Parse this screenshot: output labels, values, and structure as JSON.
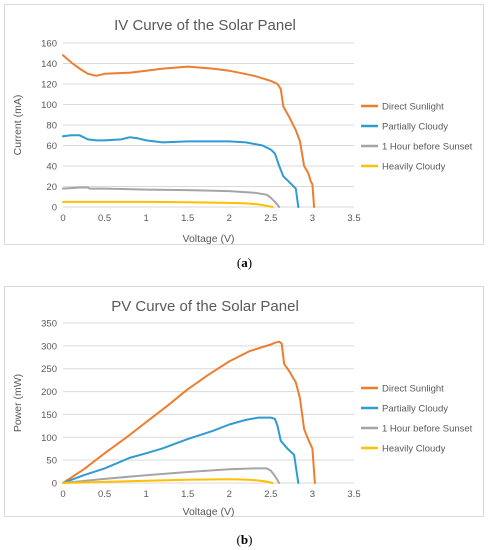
{
  "captions": {
    "a_open": "(",
    "a_letter": "a",
    "a_close": ")",
    "b_open": "(",
    "b_letter": "b",
    "b_close": ")"
  },
  "chart_data": [
    {
      "type": "line",
      "title": "IV Curve of the Solar Panel",
      "xlabel": "Voltage (V)",
      "ylabel": "Current (mA)",
      "xlim": [
        0,
        3.5
      ],
      "ylim": [
        0,
        160
      ],
      "xticks": [
        0,
        0.5,
        1,
        1.5,
        2,
        2.5,
        3,
        3.5
      ],
      "xtick_labels": [
        "0",
        "0.5",
        "1",
        "1.5",
        "2",
        "2.5",
        "3",
        "3.5"
      ],
      "yticks": [
        0,
        20,
        40,
        60,
        80,
        100,
        120,
        140,
        160
      ],
      "ytick_labels": [
        "0",
        "20",
        "40",
        "60",
        "80",
        "100",
        "120",
        "140",
        "160"
      ],
      "grid": "horizontal",
      "legend": "right",
      "series": [
        {
          "name": "Direct Sunlight",
          "color": "#ED7D31",
          "points": [
            [
              0,
              148
            ],
            [
              0.1,
              141
            ],
            [
              0.2,
              135
            ],
            [
              0.3,
              130
            ],
            [
              0.4,
              128
            ],
            [
              0.5,
              130
            ],
            [
              0.8,
              131
            ],
            [
              1.0,
              133
            ],
            [
              1.2,
              135
            ],
            [
              1.5,
              137
            ],
            [
              1.8,
              135
            ],
            [
              2.0,
              133
            ],
            [
              2.3,
              128
            ],
            [
              2.5,
              123
            ],
            [
              2.58,
              120
            ],
            [
              2.62,
              115
            ],
            [
              2.65,
              98
            ],
            [
              2.72,
              88
            ],
            [
              2.8,
              75
            ],
            [
              2.85,
              64
            ],
            [
              2.9,
              40
            ],
            [
              2.95,
              33
            ],
            [
              2.98,
              25
            ],
            [
              3.0,
              22
            ],
            [
              3.02,
              0
            ]
          ]
        },
        {
          "name": "Partially Cloudy",
          "color": "#2E9BD1",
          "points": [
            [
              0,
              69
            ],
            [
              0.1,
              70
            ],
            [
              0.2,
              70
            ],
            [
              0.3,
              66
            ],
            [
              0.4,
              65
            ],
            [
              0.5,
              65
            ],
            [
              0.7,
              66
            ],
            [
              0.8,
              68
            ],
            [
              0.9,
              67
            ],
            [
              1.0,
              65
            ],
            [
              1.2,
              63
            ],
            [
              1.5,
              64
            ],
            [
              2.0,
              64
            ],
            [
              2.2,
              63
            ],
            [
              2.4,
              60
            ],
            [
              2.5,
              56
            ],
            [
              2.55,
              52
            ],
            [
              2.6,
              40
            ],
            [
              2.65,
              30
            ],
            [
              2.7,
              26
            ],
            [
              2.75,
              22
            ],
            [
              2.8,
              18
            ],
            [
              2.83,
              0
            ]
          ]
        },
        {
          "name": "1 Hour before Sunset",
          "color": "#A5A5A5",
          "points": [
            [
              0,
              18
            ],
            [
              0.2,
              19
            ],
            [
              0.3,
              19
            ],
            [
              0.32,
              18
            ],
            [
              0.5,
              18
            ],
            [
              1.0,
              17
            ],
            [
              1.5,
              16.5
            ],
            [
              2.0,
              15.5
            ],
            [
              2.3,
              14
            ],
            [
              2.45,
              12
            ],
            [
              2.5,
              9
            ],
            [
              2.55,
              5
            ],
            [
              2.6,
              0
            ]
          ]
        },
        {
          "name": "Heavily Cloudy",
          "color": "#FFC000",
          "points": [
            [
              0,
              5
            ],
            [
              0.5,
              5
            ],
            [
              1.0,
              5
            ],
            [
              1.5,
              4.7
            ],
            [
              2.0,
              4
            ],
            [
              2.2,
              3.5
            ],
            [
              2.35,
              2.5
            ],
            [
              2.45,
              1.2
            ],
            [
              2.52,
              0
            ]
          ]
        }
      ]
    },
    {
      "type": "line",
      "title": "PV Curve of the Solar Panel",
      "xlabel": "Voltage (V)",
      "ylabel": "Power (mW)",
      "xlim": [
        0,
        3.5
      ],
      "ylim": [
        0,
        350
      ],
      "xticks": [
        0,
        0.5,
        1,
        1.5,
        2,
        2.5,
        3,
        3.5
      ],
      "xtick_labels": [
        "0",
        "0.5",
        "1",
        "1.5",
        "2",
        "2.5",
        "3",
        "3.5"
      ],
      "yticks": [
        0,
        50,
        100,
        150,
        200,
        250,
        300,
        350
      ],
      "ytick_labels": [
        "0",
        "50",
        "100",
        "150",
        "200",
        "250",
        "300",
        "350"
      ],
      "grid": "horizontal",
      "legend": "right",
      "series": [
        {
          "name": "Direct Sunlight",
          "color": "#ED7D31",
          "points": [
            [
              0,
              0
            ],
            [
              0.25,
              30
            ],
            [
              0.5,
              65
            ],
            [
              0.75,
              98
            ],
            [
              1.0,
              133
            ],
            [
              1.25,
              168
            ],
            [
              1.5,
              205
            ],
            [
              1.75,
              237
            ],
            [
              2.0,
              266
            ],
            [
              2.25,
              289
            ],
            [
              2.5,
              303
            ],
            [
              2.55,
              307
            ],
            [
              2.6,
              309
            ],
            [
              2.63,
              305
            ],
            [
              2.66,
              260
            ],
            [
              2.72,
              245
            ],
            [
              2.8,
              220
            ],
            [
              2.85,
              185
            ],
            [
              2.9,
              118
            ],
            [
              2.95,
              95
            ],
            [
              3.0,
              75
            ],
            [
              3.03,
              0
            ]
          ]
        },
        {
          "name": "Partially Cloudy",
          "color": "#2E9BD1",
          "points": [
            [
              0,
              0
            ],
            [
              0.25,
              17
            ],
            [
              0.5,
              32
            ],
            [
              0.8,
              55
            ],
            [
              1.0,
              65
            ],
            [
              1.2,
              76
            ],
            [
              1.5,
              96
            ],
            [
              1.8,
              114
            ],
            [
              2.0,
              128
            ],
            [
              2.2,
              138
            ],
            [
              2.35,
              143
            ],
            [
              2.5,
              143
            ],
            [
              2.55,
              140
            ],
            [
              2.58,
              125
            ],
            [
              2.62,
              92
            ],
            [
              2.7,
              75
            ],
            [
              2.78,
              62
            ],
            [
              2.83,
              0
            ]
          ]
        },
        {
          "name": "1 Hour before Sunset",
          "color": "#A5A5A5",
          "points": [
            [
              0,
              0
            ],
            [
              0.5,
              9
            ],
            [
              1.0,
              17
            ],
            [
              1.5,
              24
            ],
            [
              2.0,
              30
            ],
            [
              2.3,
              32
            ],
            [
              2.45,
              32
            ],
            [
              2.5,
              27
            ],
            [
              2.55,
              15
            ],
            [
              2.6,
              0
            ]
          ]
        },
        {
          "name": "Heavily Cloudy",
          "color": "#FFC000",
          "points": [
            [
              0,
              0
            ],
            [
              0.5,
              2.5
            ],
            [
              1.0,
              5
            ],
            [
              1.5,
              7
            ],
            [
              2.0,
              8
            ],
            [
              2.2,
              7.5
            ],
            [
              2.35,
              5.5
            ],
            [
              2.45,
              3
            ],
            [
              2.52,
              0
            ]
          ]
        }
      ]
    }
  ]
}
